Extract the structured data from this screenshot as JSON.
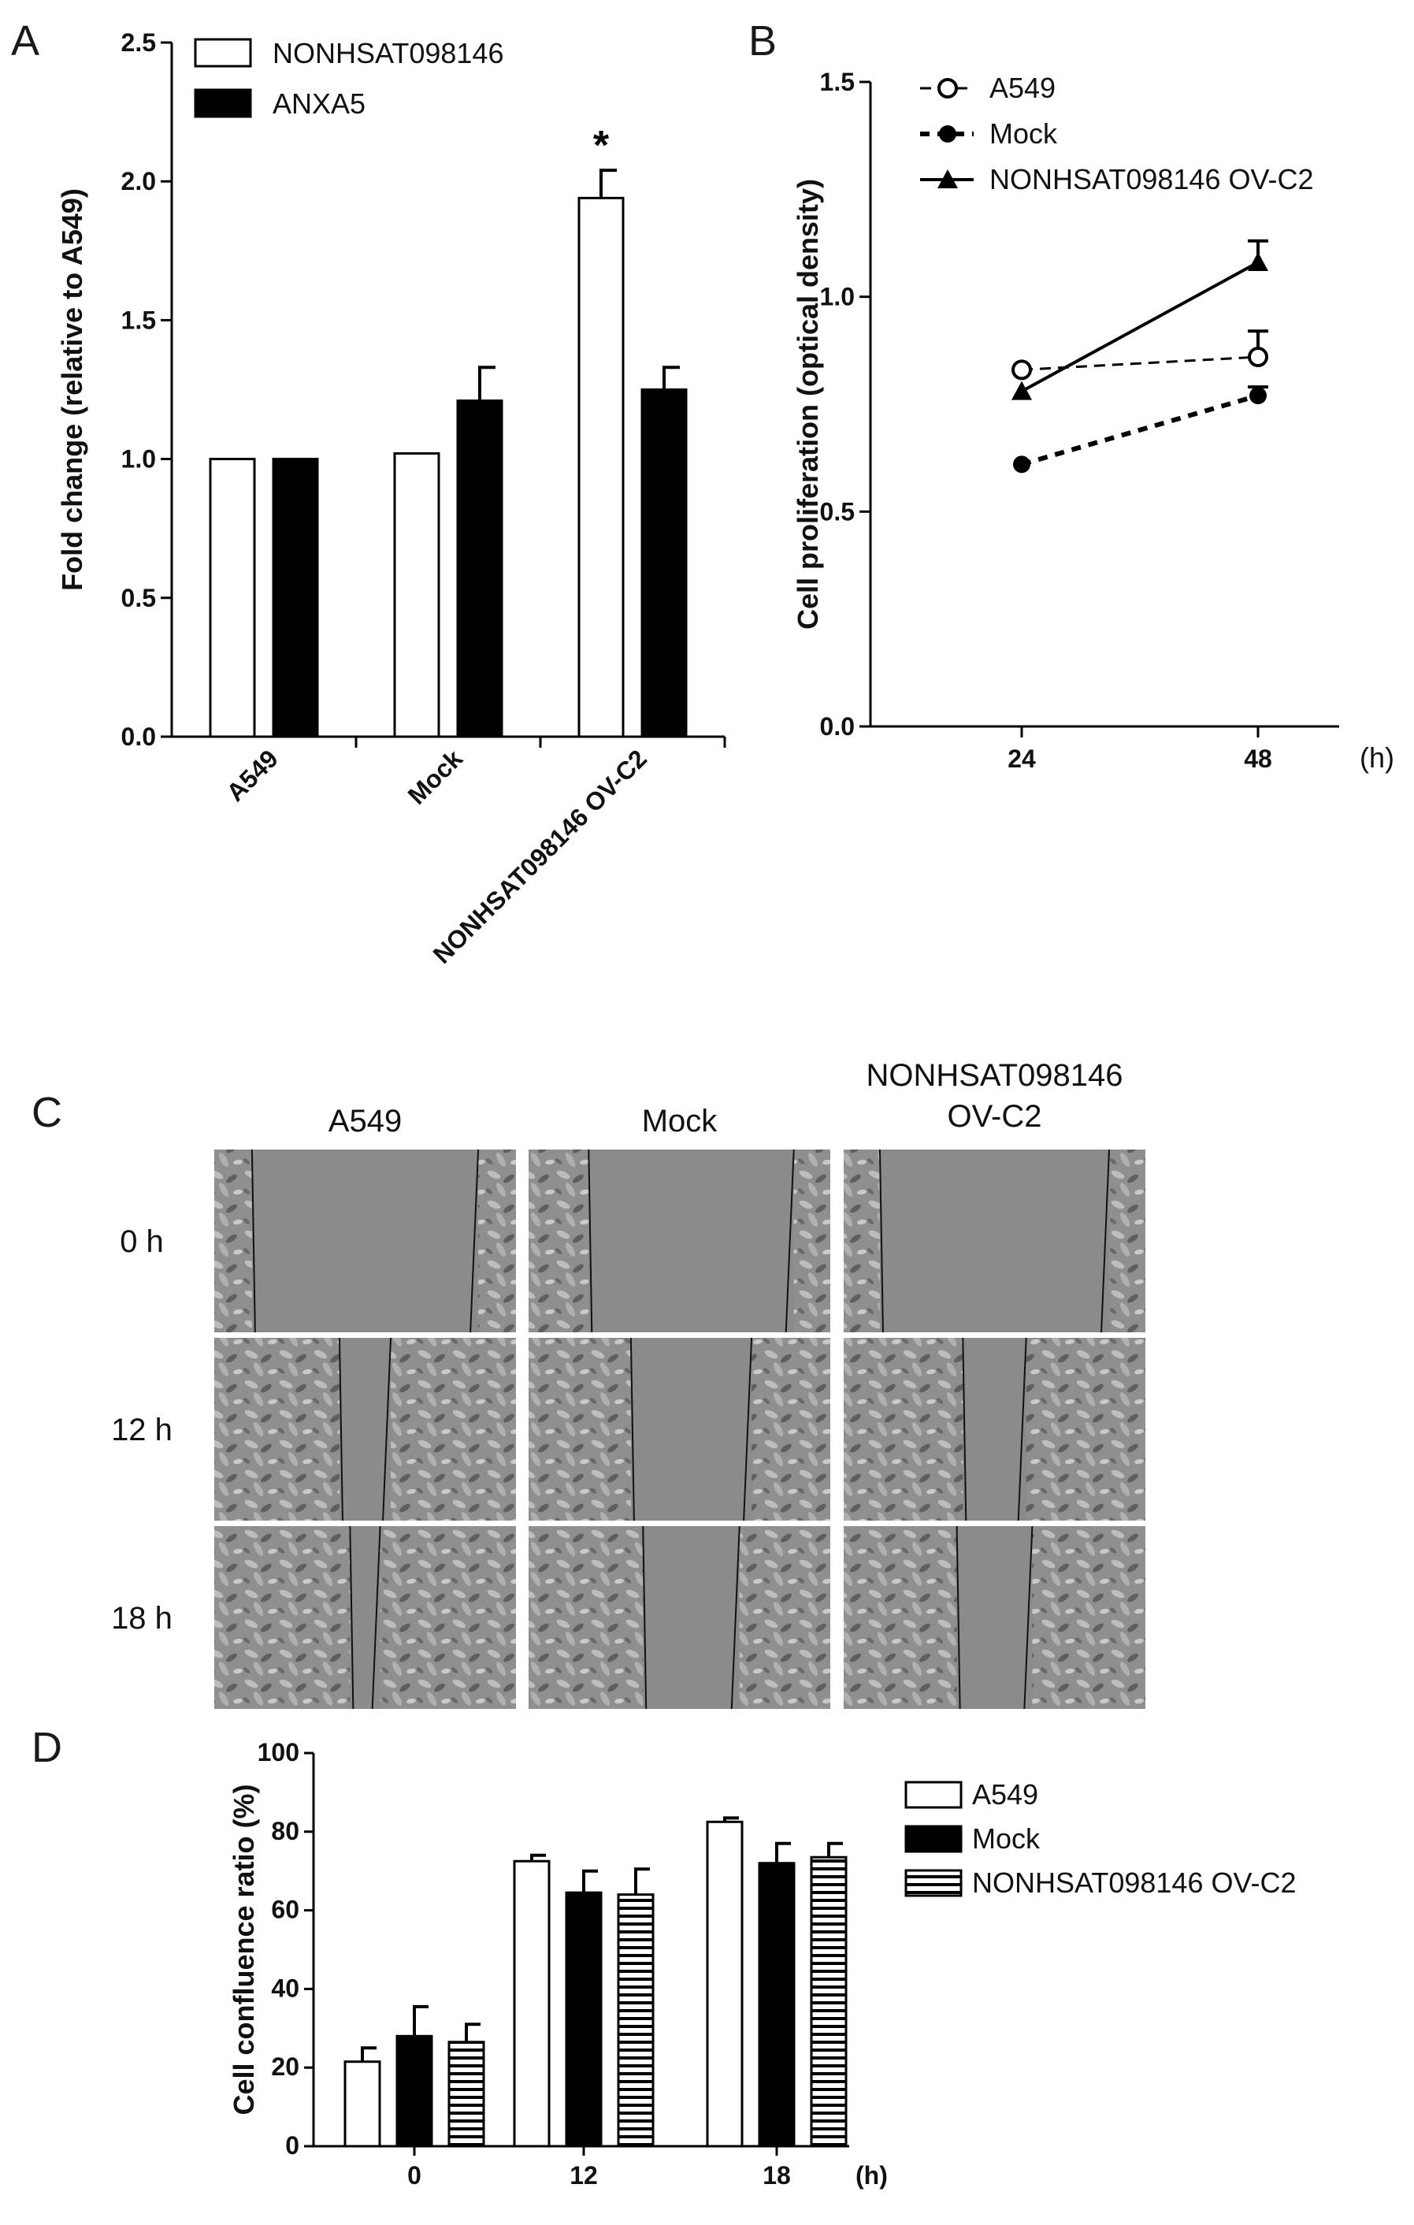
{
  "panels": {
    "A": "A",
    "B": "B",
    "C": "C",
    "D": "D"
  },
  "chart_data": [
    {
      "panel": "A",
      "type": "bar",
      "categories": [
        "A549",
        "Mock",
        "NONHSAT098146 OV-C2"
      ],
      "series": [
        {
          "name": "NONHSAT098146",
          "fill": "#ffffff",
          "values": [
            1.0,
            1.02,
            1.94
          ],
          "errors": [
            0.0,
            0.0,
            0.1
          ]
        },
        {
          "name": "ANXA5",
          "fill": "#000000",
          "values": [
            1.0,
            1.21,
            1.25
          ],
          "errors": [
            0.0,
            0.12,
            0.08
          ]
        }
      ],
      "significance": [
        {
          "category": 2,
          "series": 0,
          "label": "*"
        }
      ],
      "ylabel": "Fold change (relative to A549)",
      "xlabel": "",
      "ylim": [
        0,
        2.5
      ],
      "yticks": [
        "0.0",
        "0.5",
        "1.0",
        "1.5",
        "2.0",
        "2.5"
      ],
      "legend": "top-left",
      "grid": false
    },
    {
      "panel": "B",
      "type": "line",
      "x": [
        "24",
        "48"
      ],
      "xunit": "(h)",
      "series": [
        {
          "name": "A549",
          "marker": "open-circle",
          "dash": "dashed",
          "values": [
            0.83,
            0.86
          ],
          "errors": [
            0.0,
            0.06
          ]
        },
        {
          "name": "Mock",
          "marker": "filled-circle",
          "dash": "dotted",
          "values": [
            0.61,
            0.77
          ],
          "errors": [
            0.0,
            0.02
          ]
        },
        {
          "name": "NONHSAT098146 OV-C2",
          "marker": "filled-triangle",
          "dash": "solid",
          "values": [
            0.78,
            1.08
          ],
          "errors": [
            0.0,
            0.05
          ]
        }
      ],
      "ylabel": "Cell proliferation (optical density)",
      "xlabel": "",
      "ylim": [
        0,
        1.5
      ],
      "yticks": [
        "0.0",
        "0.5",
        "1.0",
        "1.5"
      ],
      "legend": "top-left",
      "grid": false
    },
    {
      "panel": "D",
      "type": "bar",
      "categories": [
        "0",
        "12",
        "18"
      ],
      "xunit": "(h)",
      "series": [
        {
          "name": "A549",
          "fill": "#ffffff",
          "values": [
            21.5,
            72.5,
            82.5
          ],
          "errors": [
            3.5,
            1.5,
            1.0
          ]
        },
        {
          "name": "Mock",
          "fill": "#000000",
          "values": [
            28.0,
            64.5,
            72.0
          ],
          "errors": [
            7.5,
            5.5,
            5.0
          ]
        },
        {
          "name": "NONHSAT098146 OV-C2",
          "fill": "stripes",
          "values": [
            26.5,
            64.0,
            73.5
          ],
          "errors": [
            4.5,
            6.5,
            3.5
          ]
        }
      ],
      "ylabel": "Cell confluence ratio (%)",
      "xlabel": "",
      "ylim": [
        0,
        100
      ],
      "yticks": [
        "0",
        "20",
        "40",
        "60",
        "80",
        "100"
      ],
      "legend": "right",
      "grid": false
    }
  ],
  "panel_c": {
    "columns": [
      "A549",
      "Mock",
      "NONHSAT098146\nOV-C2"
    ],
    "rows": [
      "0 h",
      "12 h",
      "18 h"
    ],
    "wound_gap_fraction": [
      [
        0.75,
        0.68,
        0.76
      ],
      [
        0.17,
        0.4,
        0.21
      ],
      [
        0.1,
        0.32,
        0.25
      ]
    ]
  }
}
